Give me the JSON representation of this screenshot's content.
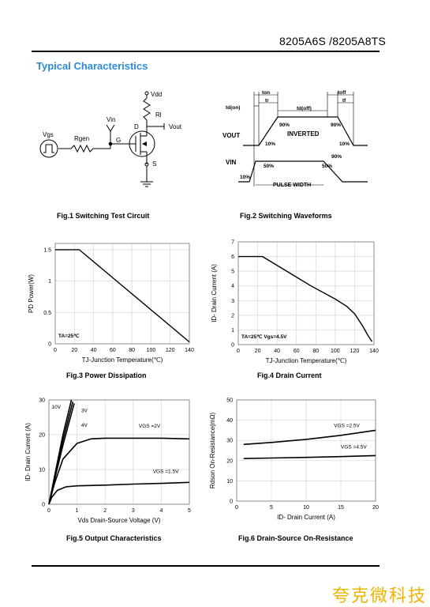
{
  "header": {
    "part_number": "8205A6S /8205A8TS"
  },
  "section_title": "Typical Characteristics",
  "fig1": {
    "caption": "Fig.1 Switching Test Circuit",
    "labels": {
      "vdd": "Vdd",
      "rl": "Rl",
      "vin": "Vin",
      "vout": "Vout",
      "d": "D",
      "vgs": "Vgs",
      "rgen": "Rgen",
      "g": "G",
      "s": "S"
    }
  },
  "fig2": {
    "caption": "Fig.2 Switching Waveforms",
    "labels": {
      "ton": "ton",
      "toff": "toff",
      "td_on": "td(on)",
      "tr": "tr",
      "td_off": "td(off)",
      "tf": "tf",
      "vout": "VOUT",
      "vin": "VIN",
      "inverted": "INVERTED",
      "pulse_width": "PULSE WIDTH",
      "p90a": "90%",
      "p90b": "90%",
      "p10a": "10%",
      "p10b": "10%",
      "p50a": "50%",
      "p50b": "50%",
      "p90c": "90%",
      "p10c": "10%"
    }
  },
  "fig3": {
    "caption": "Fig.3 Power Dissipation",
    "annotation": "TA=25℃",
    "chart_data": {
      "type": "line",
      "xlabel": "TJ-Junction Temperature(℃)",
      "ylabel": "PD  Power(W)",
      "xlim": [
        0,
        140
      ],
      "ylim": [
        0,
        1.6
      ],
      "x_ticks": [
        "0",
        "20",
        "40",
        "60",
        "80",
        "100",
        "120",
        "140"
      ],
      "y_ticks": [
        "0",
        "0.5",
        "1",
        "1.5"
      ],
      "series": [
        {
          "x": [
            0,
            25,
            140
          ],
          "y": [
            1.5,
            1.5,
            0.03
          ]
        }
      ]
    }
  },
  "fig4": {
    "caption": "Fig.4      Drain Current",
    "annotation": "TA=25℃  Vgs=4.5V",
    "chart_data": {
      "type": "line",
      "xlabel": "TJ-Junction Temperature(℃)",
      "ylabel": "ID- Drain Current (A)",
      "xlim": [
        0,
        140
      ],
      "ylim": [
        0,
        7
      ],
      "x_ticks": [
        "0",
        "20",
        "40",
        "60",
        "80",
        "100",
        "120",
        "140"
      ],
      "y_ticks": [
        "0",
        "1",
        "2",
        "3",
        "4",
        "5",
        "6",
        "7"
      ],
      "series": [
        {
          "x": [
            0,
            25,
            50,
            75,
            100,
            112,
            120,
            128,
            134,
            138
          ],
          "y": [
            6,
            6,
            5.0,
            4.0,
            3.1,
            2.6,
            2.1,
            1.3,
            0.6,
            0.2
          ]
        }
      ]
    }
  },
  "fig5": {
    "caption": "Fig.5 Output Characteristics",
    "chart_data": {
      "type": "line",
      "xlabel": "Vds Drain-Source Voltage (V)",
      "ylabel": "ID- Drain Current (A)",
      "xlim": [
        0,
        5
      ],
      "ylim": [
        0,
        30
      ],
      "x_ticks": [
        "0",
        "1",
        "2",
        "3",
        "4",
        "5"
      ],
      "y_ticks": [
        "0",
        "10",
        "20",
        "30"
      ],
      "series": [
        {
          "name": "10V",
          "x": [
            0,
            0.2,
            0.5,
            0.8
          ],
          "y": [
            0,
            8,
            20,
            30
          ]
        },
        {
          "name": "3V",
          "x": [
            0,
            0.2,
            0.5,
            0.9
          ],
          "y": [
            0,
            7,
            17,
            29
          ]
        },
        {
          "name": "4V",
          "x": [
            0,
            0.2,
            0.5,
            0.85
          ],
          "y": [
            0,
            7.5,
            18.5,
            29.5
          ]
        },
        {
          "name": "VGS =2V",
          "x": [
            0,
            0.2,
            0.5,
            1,
            1.5,
            2,
            3,
            4,
            5
          ],
          "y": [
            0,
            6,
            13,
            17.5,
            18.8,
            19,
            19,
            19,
            18.8
          ]
        },
        {
          "name": "VGS =1.5V",
          "x": [
            0,
            0.1,
            0.3,
            0.6,
            1,
            2,
            3,
            4,
            5
          ],
          "y": [
            0,
            2,
            4,
            5,
            5.3,
            5.5,
            5.8,
            6,
            6.3
          ]
        }
      ]
    }
  },
  "fig6": {
    "caption": "Fig.6 Drain-Source On-Resistance",
    "chart_data": {
      "type": "line",
      "xlabel": "ID- Drain Current (A)",
      "ylabel": "Rdson On-Resistance(mΩ)",
      "xlim": [
        0,
        20
      ],
      "ylim": [
        0,
        50
      ],
      "x_ticks": [
        "0",
        "5",
        "10",
        "15",
        "20"
      ],
      "y_ticks": [
        "0",
        "10",
        "20",
        "30",
        "40",
        "50"
      ],
      "series": [
        {
          "name": "VGS =2.5V",
          "x": [
            1,
            5,
            10,
            15,
            20
          ],
          "y": [
            28,
            29,
            30.5,
            32.5,
            35
          ]
        },
        {
          "name": "VGS =4.5V",
          "x": [
            1,
            5,
            10,
            15,
            20
          ],
          "y": [
            21,
            21.3,
            21.6,
            22,
            22.5
          ]
        }
      ]
    }
  },
  "watermark": "夸克微科技"
}
